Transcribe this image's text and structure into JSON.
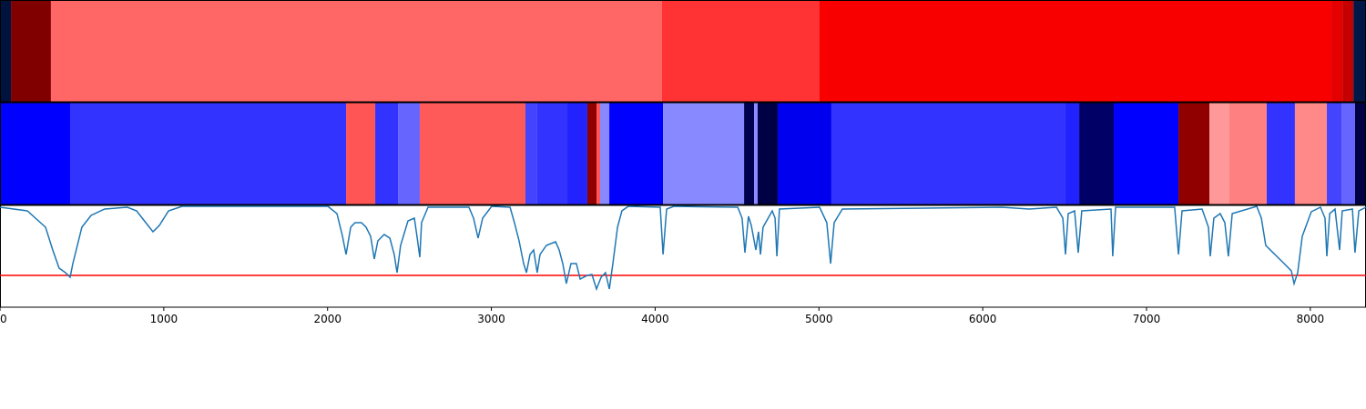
{
  "chart_data": [
    {
      "type": "heatmap",
      "xlim": [
        0,
        8340
      ],
      "edges": [
        0,
        67,
        311,
        4042,
        5004,
        8129,
        8196,
        8263,
        8340
      ],
      "colors": [
        "#00123e",
        "#800000",
        "#ff6666",
        "#ff3333",
        "#f80000",
        "#e40000",
        "#c40000",
        "#001848"
      ]
    },
    {
      "type": "heatmap",
      "xlim": [
        0,
        8340
      ],
      "edges": [
        0,
        428,
        2113,
        2291,
        2430,
        2563,
        3208,
        3280,
        3464,
        3586,
        3642,
        3664,
        3720,
        4048,
        4543,
        4604,
        4626,
        4748,
        5076,
        6505,
        6589,
        6800,
        7195,
        7384,
        7506,
        7734,
        7906,
        8101,
        8190,
        8273,
        8340
      ],
      "colors": [
        "#0000ff",
        "#3333ff",
        "#ff5555",
        "#3333ff",
        "#6666ff",
        "#ff5a5a",
        "#4444ff",
        "#3333ff",
        "#2222ff",
        "#900000",
        "#ff5555",
        "#8888ff",
        "#0000ff",
        "#8888ff",
        "#000050",
        "#8888ff",
        "#000044",
        "#0000ee",
        "#3333ff",
        "#2222ff",
        "#000066",
        "#0000ff",
        "#900000",
        "#ff9999",
        "#ff8080",
        "#3333ff",
        "#ff8888",
        "#4444ff",
        "#6666ff",
        "#000044"
      ]
    },
    {
      "type": "line",
      "color": "#1f77b4",
      "xlim": [
        0,
        8340
      ],
      "ylim": [
        0,
        112
      ],
      "xticks": [
        0,
        1000,
        2000,
        3000,
        4000,
        5000,
        6000,
        7000,
        8000
      ],
      "threshold": {
        "value": 35,
        "color": "#ff0000"
      },
      "x": [
        0,
        167,
        278,
        322,
        361,
        400,
        428,
        445,
        500,
        556,
        639,
        778,
        834,
        890,
        934,
        973,
        1029,
        1112,
        2002,
        2057,
        2091,
        2113,
        2141,
        2168,
        2207,
        2235,
        2263,
        2285,
        2307,
        2346,
        2380,
        2407,
        2424,
        2446,
        2491,
        2530,
        2546,
        2563,
        2574,
        2613,
        2863,
        2891,
        2919,
        2947,
        3002,
        3114,
        3141,
        3169,
        3197,
        3214,
        3236,
        3258,
        3280,
        3297,
        3336,
        3392,
        3414,
        3436,
        3458,
        3486,
        3519,
        3542,
        3586,
        3614,
        3642,
        3670,
        3697,
        3720,
        3742,
        3770,
        3797,
        3836,
        4031,
        4048,
        4070,
        4114,
        4504,
        4531,
        4548,
        4570,
        4587,
        4615,
        4631,
        4643,
        4659,
        4715,
        4732,
        4743,
        4759,
        5004,
        5048,
        5071,
        5093,
        5143,
        6116,
        6283,
        6450,
        6489,
        6505,
        6522,
        6561,
        6583,
        6605,
        6783,
        6794,
        6811,
        7172,
        7195,
        7217,
        7339,
        7378,
        7389,
        7411,
        7450,
        7478,
        7500,
        7523,
        7673,
        7701,
        7728,
        7784,
        7840,
        7884,
        7901,
        7923,
        7951,
        8006,
        8062,
        8090,
        8101,
        8118,
        8151,
        8179,
        8195,
        8257,
        8273,
        8296,
        8340
      ],
      "values": [
        110,
        106,
        88,
        63,
        43,
        38,
        33,
        48,
        88,
        101,
        108,
        110,
        106,
        93,
        83,
        90,
        106,
        111,
        111,
        103,
        78,
        58,
        88,
        93,
        93,
        88,
        78,
        53,
        73,
        80,
        76,
        58,
        38,
        68,
        95,
        98,
        78,
        55,
        93,
        110,
        110,
        98,
        76,
        98,
        111,
        110,
        93,
        73,
        48,
        38,
        58,
        63,
        38,
        58,
        68,
        72,
        63,
        48,
        26,
        48,
        48,
        31,
        35,
        36,
        20,
        33,
        38,
        20,
        48,
        88,
        106,
        111,
        110,
        58,
        108,
        111,
        110,
        98,
        60,
        100,
        90,
        63,
        83,
        58,
        88,
        106,
        98,
        56,
        108,
        110,
        93,
        48,
        93,
        108,
        110,
        108,
        110,
        98,
        58,
        103,
        106,
        60,
        106,
        108,
        56,
        110,
        110,
        58,
        106,
        108,
        88,
        56,
        98,
        103,
        93,
        56,
        103,
        111,
        98,
        68,
        58,
        48,
        40,
        26,
        38,
        78,
        105,
        110,
        98,
        56,
        103,
        108,
        63,
        106,
        108,
        60,
        106,
        110
      ]
    }
  ]
}
